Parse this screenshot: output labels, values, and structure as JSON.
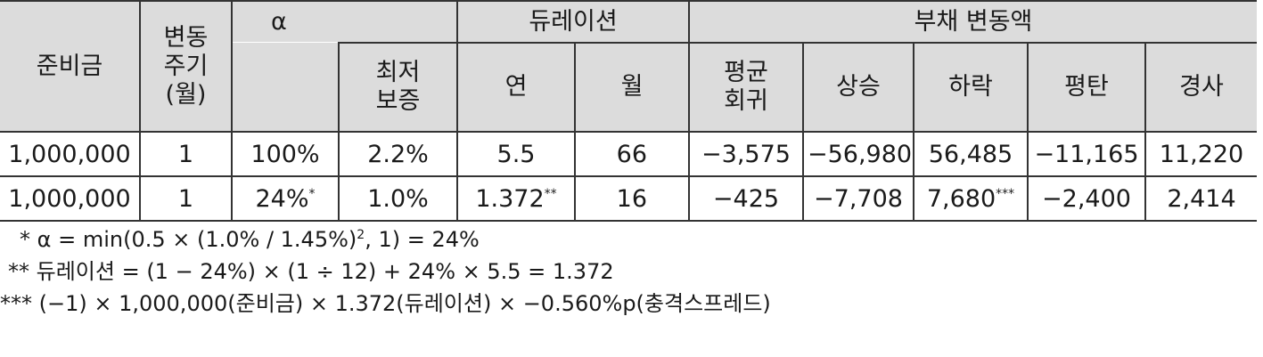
{
  "table": {
    "headers": {
      "reserve": "준비금",
      "period_line1": "변동",
      "period_line2": "주기",
      "period_line3": "(월)",
      "alpha": "α",
      "min_guarantee_line1": "최저",
      "min_guarantee_line2": "보증",
      "duration": "듀레이션",
      "year": "연",
      "month": "월",
      "liability_change": "부채 변동액",
      "mean_reversion_line1": "평균",
      "mean_reversion_line2": "회귀",
      "rise": "상승",
      "fall": "하락",
      "flat": "평탄",
      "steep": "경사"
    },
    "rows": [
      {
        "reserve": "1,000,000",
        "period": "1",
        "alpha": "100%",
        "alpha_mark": "",
        "min_guarantee": "2.2%",
        "year": "5.5",
        "year_mark": "",
        "month": "66",
        "mean_reversion": "−3,575",
        "rise": "−56,980",
        "fall": "56,485",
        "fall_mark": "",
        "flat": "−11,165",
        "steep": "11,220"
      },
      {
        "reserve": "1,000,000",
        "period": "1",
        "alpha": "24%",
        "alpha_mark": "*",
        "min_guarantee": "1.0%",
        "year": "1.372",
        "year_mark": "**",
        "month": "16",
        "mean_reversion": "−425",
        "rise": "−7,708",
        "fall": "7,680",
        "fall_mark": "***",
        "flat": "−2,400",
        "steep": "2,414"
      }
    ]
  },
  "notes": {
    "note1_a": "* α = min(0.5 × (1.0% / 1.45%)",
    "note1_sup": "2",
    "note1_b": ", 1) = 24%",
    "note2": "** 듀레이션 = (1 − 24%) × (1 ÷ 12) + 24% × 5.5 = 1.372",
    "note3": "*** (−1) × 1,000,000(준비금) × 1.372(듀레이션) × −0.560%p(충격스프레드)"
  }
}
